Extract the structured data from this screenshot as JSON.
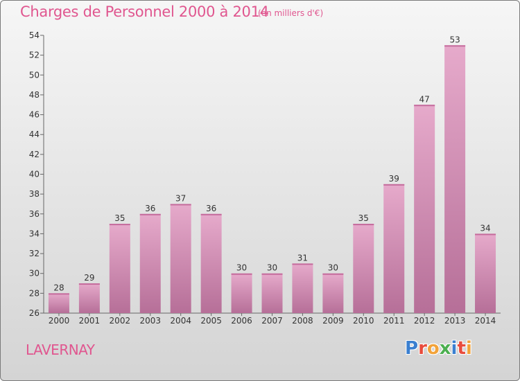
{
  "header": {
    "title": "Charges de Personnel 2000 à 2014",
    "subtitle": "(en milliers d'€)"
  },
  "footer": {
    "commune": "LAVERNAY",
    "logo_text": "Proxiti",
    "logo_colors": [
      "#3a7fd0",
      "#e84c3d",
      "#f2a33a",
      "#4caf50",
      "#3a7fd0",
      "#e84c3d",
      "#f2a33a"
    ]
  },
  "colors": {
    "bar": "#d98fb6",
    "bar_light": "#e7b0cf",
    "bar_dark": "#b86c98",
    "text": "#333333",
    "accent": "#e0568f"
  },
  "chart_data": {
    "type": "bar",
    "categories": [
      "2000",
      "2001",
      "2002",
      "2003",
      "2004",
      "2005",
      "2006",
      "2007",
      "2008",
      "2009",
      "2010",
      "2011",
      "2012",
      "2013",
      "2014"
    ],
    "values": [
      28,
      29,
      35,
      36,
      37,
      36,
      30,
      30,
      31,
      30,
      35,
      39,
      47,
      53,
      34
    ],
    "ylim": [
      26,
      54
    ],
    "yticks": [
      26,
      28,
      30,
      32,
      34,
      36,
      38,
      40,
      42,
      44,
      46,
      48,
      50,
      52,
      54
    ],
    "grid": false,
    "legend": "none"
  }
}
